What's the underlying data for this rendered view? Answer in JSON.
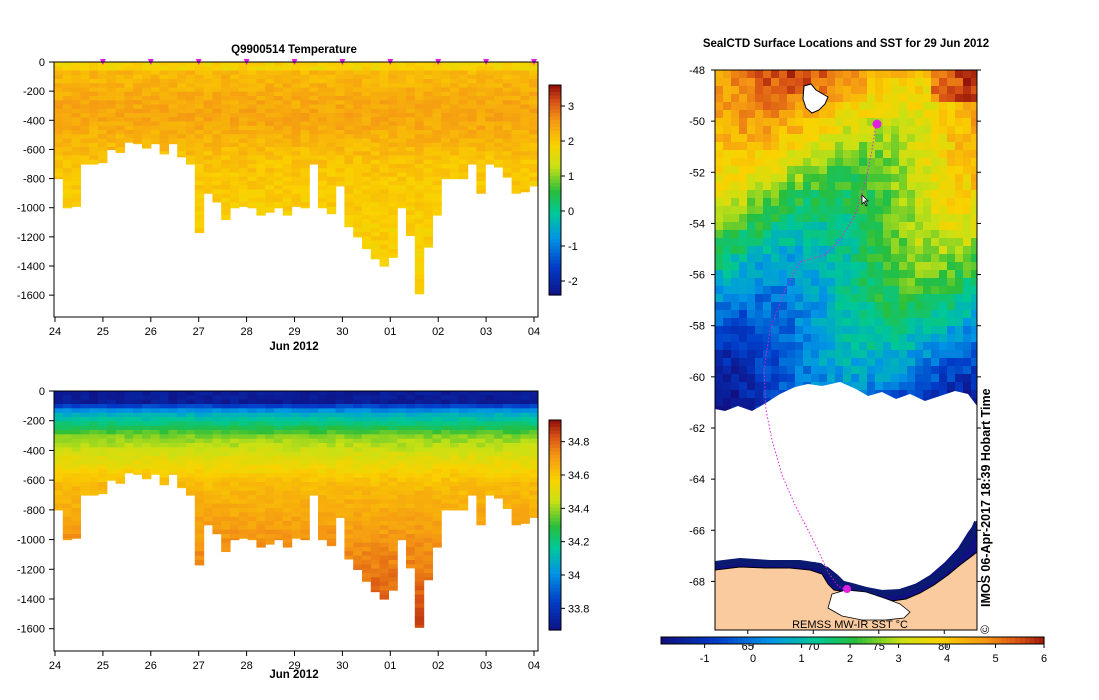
{
  "chart_data": [
    {
      "type": "heatmap",
      "title": "Q9900514  Temperature",
      "xlabel": "Jun 2012",
      "x_ticks": [
        "24",
        "25",
        "26",
        "27",
        "28",
        "29",
        "30",
        "01",
        "02",
        "03",
        "04"
      ],
      "y_ticks": [
        "0",
        "-200",
        "-400",
        "-600",
        "-800",
        "-1000",
        "-1200",
        "-1400",
        "-1600"
      ],
      "ylim": [
        -1750,
        0
      ],
      "colorbar_ticks": [
        "3",
        "2",
        "1",
        "0",
        "-1",
        "-2"
      ],
      "colorbar_range": [
        -2.4,
        3.6
      ],
      "profile_bottoms": [
        -800,
        -1000,
        -990,
        -700,
        -700,
        -690,
        -600,
        -620,
        -550,
        -560,
        -590,
        -560,
        -630,
        -560,
        -650,
        -700,
        -1170,
        -900,
        -960,
        -1080,
        -1000,
        -990,
        -1000,
        -1050,
        -1030,
        -1000,
        -1050,
        -990,
        -1000,
        -700,
        -1000,
        -1040,
        -850,
        -1130,
        -1200,
        -1280,
        -1350,
        -1400,
        -1340,
        -1000,
        -1190,
        -1590,
        -1270,
        -1050,
        -800,
        -800,
        -800,
        -700,
        -900,
        -700,
        -720,
        -790,
        -900,
        -890,
        -850
      ]
    },
    {
      "type": "heatmap",
      "title": "",
      "xlabel": "Jun 2012",
      "x_ticks": [
        "24",
        "25",
        "26",
        "27",
        "28",
        "29",
        "30",
        "01",
        "02",
        "03",
        "04"
      ],
      "y_ticks": [
        "0",
        "-200",
        "-400",
        "-600",
        "-800",
        "-1000",
        "-1200",
        "-1400",
        "-1600"
      ],
      "ylim": [
        -1750,
        0
      ],
      "colorbar_ticks": [
        "34.8",
        "34.6",
        "34.4",
        "34.2",
        "34",
        "33.8"
      ],
      "colorbar_range": [
        33.67,
        34.93
      ],
      "profile_bottoms": [
        -800,
        -1000,
        -990,
        -700,
        -700,
        -690,
        -600,
        -620,
        -550,
        -560,
        -590,
        -560,
        -630,
        -560,
        -650,
        -700,
        -1170,
        -900,
        -960,
        -1080,
        -1000,
        -990,
        -1000,
        -1050,
        -1030,
        -1000,
        -1050,
        -990,
        -1000,
        -700,
        -1000,
        -1040,
        -850,
        -1130,
        -1200,
        -1280,
        -1350,
        -1400,
        -1340,
        -1000,
        -1190,
        -1590,
        -1270,
        -1050,
        -800,
        -800,
        -800,
        -700,
        -900,
        -700,
        -720,
        -790,
        -900,
        -890,
        -850
      ]
    },
    {
      "type": "heatmap",
      "title": "SealCTD Surface Locations and SST for 29 Jun 2012",
      "y_ticks": [
        "-48",
        "-50",
        "-52",
        "-54",
        "-56",
        "-58",
        "-60",
        "-62",
        "-64",
        "-66",
        "-68"
      ],
      "ylim": [
        -69.9,
        -48
      ],
      "x_ticks": [
        "65",
        "70",
        "75",
        "80"
      ],
      "xlim": [
        62.5,
        82.5
      ],
      "source_label": "REMSS MW-IR SST °C",
      "side_label": "IMOS 06-Apr-2017 18:39 Hobart Time",
      "copyright": "©",
      "colorbar_ticks": [
        "-1",
        "0",
        "1",
        "2",
        "3",
        "4",
        "5",
        "6"
      ],
      "colorbar_range": [
        -1.9,
        6
      ]
    }
  ]
}
